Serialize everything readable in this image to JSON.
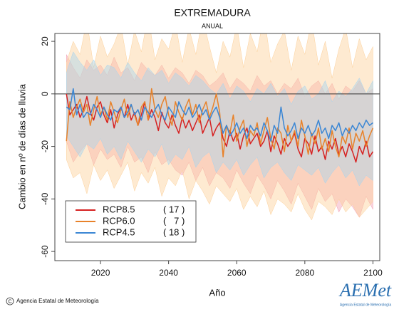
{
  "chart_data": {
    "type": "line",
    "title": "EXTREMADURA",
    "subtitle": "ANUAL",
    "y_label": "Cambio en nº de días de lluvia",
    "x_label": "Año",
    "copyright": "C",
    "footer": "Agencia Estatal de Meteorología",
    "logo": "AEMet",
    "logo_caption": "Agencia Estatal de Meteorología",
    "xlim": [
      2006.6,
      2102
    ],
    "xticks": [
      2020,
      2040,
      2060,
      2080,
      2100
    ],
    "ylim": [
      -63.5,
      23
    ],
    "yticks": [
      -60,
      -40,
      -20,
      0,
      20
    ],
    "hline": 0,
    "legend": "lower-left",
    "x": [
      2010,
      2011,
      2012,
      2013,
      2014,
      2015,
      2016,
      2017,
      2018,
      2019,
      2020,
      2021,
      2022,
      2023,
      2024,
      2025,
      2026,
      2027,
      2028,
      2029,
      2030,
      2031,
      2032,
      2033,
      2034,
      2035,
      2036,
      2037,
      2038,
      2039,
      2040,
      2041,
      2042,
      2043,
      2044,
      2045,
      2046,
      2047,
      2048,
      2049,
      2050,
      2051,
      2052,
      2053,
      2054,
      2055,
      2056,
      2057,
      2058,
      2059,
      2060,
      2061,
      2062,
      2063,
      2064,
      2065,
      2066,
      2067,
      2068,
      2069,
      2070,
      2071,
      2072,
      2073,
      2074,
      2075,
      2076,
      2077,
      2078,
      2079,
      2080,
      2081,
      2082,
      2083,
      2084,
      2085,
      2086,
      2087,
      2088,
      2089,
      2090,
      2091,
      2092,
      2093,
      2094,
      2095,
      2096,
      2097,
      2098,
      2099,
      2100
    ],
    "band_x": [
      2010,
      2012,
      2014,
      2016,
      2018,
      2020,
      2022,
      2024,
      2026,
      2028,
      2030,
      2032,
      2034,
      2036,
      2038,
      2040,
      2042,
      2044,
      2046,
      2048,
      2050,
      2052,
      2054,
      2056,
      2058,
      2060,
      2062,
      2064,
      2066,
      2068,
      2070,
      2072,
      2074,
      2076,
      2078,
      2080,
      2082,
      2084,
      2086,
      2088,
      2090,
      2092,
      2094,
      2096,
      2098,
      2100
    ],
    "series": [
      {
        "name": "RCP8.5",
        "color": "#d62020",
        "band_color": "#f2a0b4",
        "models": 17,
        "models_label": "( 17 )",
        "values": [
          0,
          -8,
          -6,
          -4,
          -9,
          -6,
          -1,
          -7,
          -10,
          -5,
          -3,
          -8,
          -11,
          -6,
          -13,
          -8,
          -5,
          -9,
          -4,
          -10,
          -7,
          -12,
          -8,
          -3,
          -10,
          -6,
          -9,
          -14,
          -7,
          -11,
          -13,
          -8,
          -12,
          -15,
          -9,
          -13,
          -10,
          -14,
          -11,
          -8,
          -15,
          -12,
          -9,
          -16,
          -13,
          -11,
          -17,
          -20,
          -14,
          -18,
          -15,
          -21,
          -16,
          -13,
          -19,
          -17,
          -15,
          -20,
          -18,
          -14,
          -22,
          -16,
          -19,
          -23,
          -17,
          -20,
          -18,
          -15,
          -21,
          -24,
          -17,
          -19,
          -23,
          -16,
          -22,
          -20,
          -25,
          -18,
          -21,
          -17,
          -23,
          -20,
          -24,
          -19,
          -22,
          -26,
          -20,
          -23,
          -18,
          -24,
          -22
        ],
        "band_high": [
          15,
          10,
          6,
          13,
          9,
          11,
          7,
          14,
          8,
          10,
          5,
          12,
          9,
          7,
          11,
          6,
          10,
          8,
          4,
          9,
          7,
          3,
          5,
          8,
          2,
          6,
          4,
          1,
          7,
          3,
          5,
          0,
          4,
          2,
          6,
          -1,
          3,
          5,
          0,
          4,
          -2,
          3,
          1,
          5,
          0,
          2
        ],
        "band_low": [
          -18,
          -26,
          -22,
          -19,
          -27,
          -21,
          -25,
          -23,
          -28,
          -20,
          -26,
          -24,
          -30,
          -22,
          -27,
          -25,
          -29,
          -31,
          -26,
          -33,
          -28,
          -35,
          -30,
          -32,
          -36,
          -29,
          -34,
          -38,
          -31,
          -35,
          -40,
          -33,
          -37,
          -42,
          -34,
          -39,
          -44,
          -36,
          -41,
          -38,
          -45,
          -40,
          -43,
          -47,
          -39,
          -44
        ]
      },
      {
        "name": "RCP6.0",
        "color": "#e8822a",
        "band_color": "#fcd09a",
        "models": 7,
        "models_label": "(   7 )",
        "values": [
          -18,
          -3,
          -9,
          -5,
          -2,
          -7,
          -4,
          -12,
          -6,
          -1,
          -8,
          -5,
          -10,
          -3,
          -7,
          -11,
          -6,
          -2,
          -9,
          -4,
          -8,
          -12,
          -5,
          -3,
          -10,
          2,
          -6,
          -9,
          -4,
          -1,
          -8,
          -12,
          -3,
          -7,
          -10,
          -5,
          -2,
          -8,
          -4,
          -11,
          -6,
          -3,
          -9,
          -5,
          0,
          -7,
          -24,
          -12,
          -15,
          -8,
          -18,
          -13,
          -10,
          -20,
          -14,
          -16,
          -11,
          -19,
          -14,
          -9,
          -17,
          -21,
          -13,
          -15,
          -22,
          -12,
          -18,
          -14,
          -20,
          -10,
          -16,
          -23,
          -15,
          -19,
          -13,
          -21,
          -17,
          -22,
          -14,
          -20,
          -24,
          -16,
          -19,
          -13,
          -21,
          -15,
          -18,
          -14,
          -20,
          -16,
          -13
        ],
        "band_high": [
          12,
          20,
          15,
          28,
          10,
          22,
          14,
          19,
          26,
          11,
          24,
          16,
          30,
          13,
          21,
          17,
          27,
          12,
          25,
          15,
          29,
          18,
          8,
          20,
          14,
          26,
          10,
          23,
          16,
          30,
          12,
          19,
          24,
          9,
          22,
          15,
          28,
          11,
          20,
          6,
          17,
          25,
          10,
          21,
          13,
          18
        ],
        "band_low": [
          -25,
          -32,
          -30,
          -38,
          -27,
          -33,
          -29,
          -36,
          -31,
          -26,
          -37,
          -30,
          -34,
          -28,
          -39,
          -32,
          -35,
          -29,
          -40,
          -33,
          -37,
          -42,
          -35,
          -38,
          -41,
          -36,
          -44,
          -39,
          -43,
          -37,
          -46,
          -40,
          -42,
          -45,
          -38,
          -44,
          -48,
          -41,
          -43,
          -46,
          -40,
          -45,
          -42,
          -47,
          -44,
          -41
        ]
      },
      {
        "name": "RCP4.5",
        "color": "#3a86d4",
        "band_color": "#a8d4ee",
        "models": 18,
        "models_label": "( 18 )",
        "values": [
          -5,
          -6,
          2,
          -8,
          -4,
          -9,
          -7,
          -8,
          -4,
          -6,
          -9,
          -5,
          -8,
          -10,
          -6,
          -7,
          -5,
          -9,
          -7,
          -4,
          -8,
          -6,
          -10,
          -5,
          -7,
          -9,
          -6,
          -4,
          -8,
          -10,
          -5,
          -7,
          -9,
          -3,
          -6,
          -8,
          -5,
          -9,
          -7,
          -4,
          -8,
          -6,
          -10,
          -7,
          -5,
          -9,
          -15,
          -12,
          -16,
          -14,
          -11,
          -15,
          -13,
          -17,
          -12,
          -14,
          -13,
          -16,
          -11,
          -14,
          -18,
          -12,
          -15,
          -5,
          -13,
          -16,
          -14,
          -11,
          -17,
          -13,
          -15,
          -12,
          -16,
          -14,
          -10,
          -15,
          -13,
          -17,
          -12,
          -14,
          -11,
          -16,
          -13,
          -15,
          -12,
          -14,
          -11,
          -13,
          -10,
          -12,
          -11
        ],
        "band_high": [
          8,
          16,
          12,
          9,
          13,
          7,
          11,
          10,
          6,
          12,
          8,
          5,
          10,
          7,
          9,
          4,
          8,
          6,
          3,
          7,
          5,
          2,
          0,
          4,
          -2,
          3,
          1,
          -3,
          2,
          0,
          4,
          -1,
          2,
          -4,
          1,
          3,
          -2,
          0,
          5,
          -3,
          1,
          -1,
          2,
          6,
          0,
          5
        ],
        "band_low": [
          -16,
          -20,
          -24,
          -19,
          -21,
          -17,
          -23,
          -20,
          -25,
          -18,
          -22,
          -26,
          -21,
          -24,
          -19,
          -27,
          -23,
          -25,
          -20,
          -28,
          -24,
          -22,
          -30,
          -26,
          -29,
          -25,
          -31,
          -27,
          -24,
          -32,
          -28,
          -26,
          -30,
          -33,
          -27,
          -29,
          -31,
          -28,
          -34,
          -30,
          -27,
          -32,
          -29,
          -35,
          -31,
          -33
        ]
      }
    ]
  }
}
